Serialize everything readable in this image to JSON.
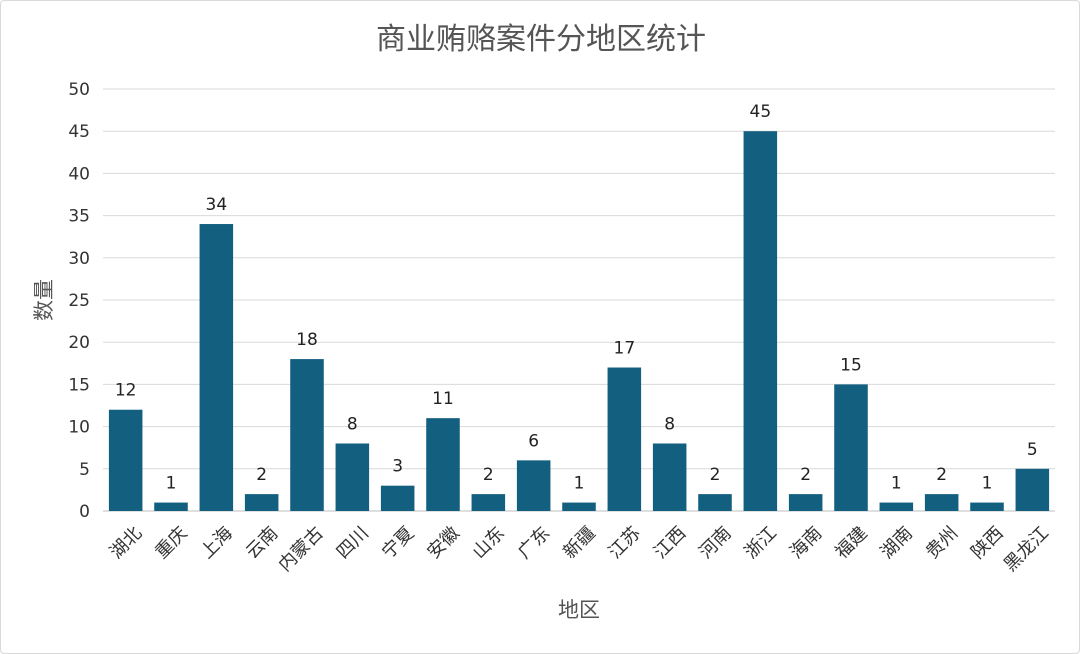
{
  "chart_data": {
    "type": "bar",
    "title": "商业贿赂案件分地区统计",
    "xlabel": "地区",
    "ylabel": "数量",
    "ylim": [
      0,
      50
    ],
    "yticks": [
      0,
      5,
      10,
      15,
      20,
      25,
      30,
      35,
      40,
      45,
      50
    ],
    "grid": true,
    "legend": "none",
    "bar_color": "#135f80",
    "categories": [
      "湖北",
      "重庆",
      "上海",
      "云南",
      "内蒙古",
      "四川",
      "宁夏",
      "安徽",
      "山东",
      "广东",
      "新疆",
      "江苏",
      "江西",
      "河南",
      "浙江",
      "海南",
      "福建",
      "湖南",
      "贵州",
      "陕西",
      "黑龙江"
    ],
    "values": [
      12,
      1,
      34,
      2,
      18,
      8,
      3,
      11,
      2,
      6,
      1,
      17,
      8,
      2,
      45,
      2,
      15,
      1,
      2,
      1,
      5
    ]
  }
}
